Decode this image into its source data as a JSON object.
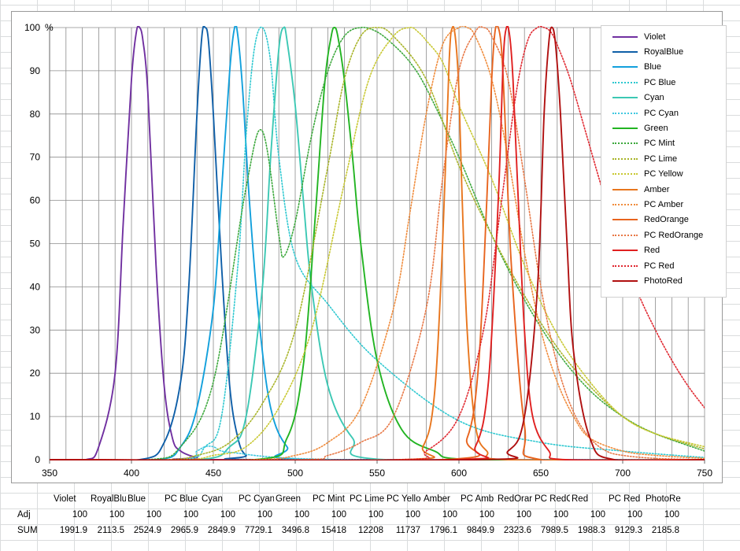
{
  "chart_data": {
    "type": "line",
    "title": "",
    "xlabel": "",
    "ylabel": "",
    "y_unit_label": "%",
    "xlim": [
      350,
      750
    ],
    "ylim": [
      0,
      100
    ],
    "x_ticks": [
      350,
      400,
      450,
      500,
      550,
      600,
      650,
      700,
      750
    ],
    "y_ticks": [
      0,
      10,
      20,
      30,
      40,
      50,
      60,
      70,
      80,
      90,
      100
    ],
    "grid": "vertical every 10 nm, horizontal every 10 %",
    "legend_position": "top-right",
    "series": [
      {
        "name": "Violet",
        "color": "#7030a0",
        "style": "solid",
        "x": [
          372,
          380,
          390,
          395,
          400,
          403,
          405,
          407,
          410,
          415,
          420,
          425,
          430,
          440,
          450
        ],
        "y": [
          0,
          3,
          20,
          55,
          88,
          99,
          100,
          97,
          85,
          45,
          17,
          5,
          2,
          0.5,
          0
        ]
      },
      {
        "name": "RoyalBlue",
        "color": "#0f5fa8",
        "style": "solid",
        "x": [
          405,
          420,
          430,
          435,
          440,
          443,
          445,
          447,
          450,
          455,
          460,
          465,
          470,
          480
        ],
        "y": [
          0,
          4,
          18,
          40,
          80,
          98,
          100,
          97,
          80,
          45,
          17,
          5,
          1,
          0
        ]
      },
      {
        "name": "Blue",
        "color": "#12a0dc",
        "style": "solid",
        "x": [
          415,
          430,
          440,
          450,
          455,
          460,
          463,
          465,
          468,
          472,
          478,
          485,
          495,
          510
        ],
        "y": [
          0,
          3,
          12,
          35,
          62,
          90,
          100,
          98,
          85,
          60,
          32,
          12,
          3,
          0
        ]
      },
      {
        "name": "PC Blue",
        "color": "#2ec8d0",
        "style": "dotted",
        "x": [
          430,
          445,
          455,
          465,
          470,
          475,
          480,
          485,
          490,
          500,
          520,
          550,
          600,
          650,
          700,
          750
        ],
        "y": [
          0,
          3,
          10,
          45,
          75,
          95,
          100,
          92,
          70,
          47,
          36,
          23,
          9,
          4,
          2,
          0.5
        ]
      },
      {
        "name": "Cyan",
        "color": "#3cc8b4",
        "style": "solid",
        "x": [
          440,
          460,
          470,
          480,
          485,
          490,
          493,
          495,
          500,
          505,
          510,
          520,
          535,
          555
        ],
        "y": [
          0,
          3,
          10,
          40,
          70,
          95,
          100,
          97,
          82,
          60,
          40,
          17,
          5,
          0
        ]
      },
      {
        "name": "PC Cyan",
        "color": "#40c8e0",
        "style": "dotted",
        "x": [
          430,
          440,
          445,
          450,
          455,
          465,
          480,
          500,
          520,
          545
        ],
        "y": [
          0,
          2,
          3,
          3,
          2,
          1.5,
          0.8,
          0.3,
          0.1,
          0
        ]
      },
      {
        "name": "Green",
        "color": "#22b422",
        "style": "solid",
        "x": [
          475,
          495,
          505,
          512,
          518,
          522,
          524,
          526,
          530,
          535,
          540,
          550,
          565,
          585,
          610
        ],
        "y": [
          0,
          5,
          22,
          55,
          87,
          98,
          100,
          98,
          88,
          70,
          50,
          23,
          7,
          2,
          0
        ]
      },
      {
        "name": "PC Mint",
        "color": "#3ca83c",
        "style": "dotted",
        "x": [
          410,
          430,
          450,
          470,
          480,
          490,
          493,
          500,
          510,
          520,
          530,
          540,
          550,
          560,
          570,
          580,
          600,
          620,
          640,
          660,
          680,
          700,
          720,
          750
        ],
        "y": [
          0,
          3,
          18,
          63,
          76,
          52,
          47,
          55,
          75,
          90,
          98,
          100,
          99,
          96,
          92,
          86,
          70,
          52,
          37,
          25,
          16,
          10,
          6,
          2
        ]
      },
      {
        "name": "PC Lime",
        "color": "#a8b428",
        "style": "dotted",
        "x": [
          420,
          440,
          460,
          480,
          500,
          520,
          530,
          540,
          550,
          560,
          580,
          600,
          620,
          640,
          660,
          680,
          700,
          720,
          750
        ],
        "y": [
          0,
          1,
          4,
          13,
          30,
          68,
          88,
          98,
          100,
          98,
          88,
          68,
          52,
          38,
          26,
          17,
          10,
          6,
          2.5
        ]
      },
      {
        "name": "PC Yellow",
        "color": "#c8c832",
        "style": "dotted",
        "x": [
          430,
          450,
          470,
          490,
          510,
          530,
          545,
          560,
          570,
          575,
          580,
          590,
          600,
          620,
          640,
          660,
          680,
          700,
          720,
          750
        ],
        "y": [
          0,
          1,
          3,
          12,
          30,
          64,
          88,
          98,
          100,
          99,
          97,
          92,
          82,
          65,
          45,
          29,
          18,
          10,
          6,
          3
        ]
      },
      {
        "name": "Amber",
        "color": "#e8761e",
        "style": "solid",
        "x": [
          565,
          578,
          585,
          590,
          594,
          596,
          598,
          600,
          602,
          605,
          610,
          617,
          630
        ],
        "y": [
          0,
          3,
          15,
          50,
          92,
          100,
          97,
          85,
          60,
          30,
          8,
          2,
          0
        ]
      },
      {
        "name": "PC Amber",
        "color": "#f08c3c",
        "style": "dotted",
        "x": [
          470,
          500,
          520,
          540,
          560,
          570,
          580,
          590,
          600,
          605,
          610,
          620,
          630,
          640,
          650,
          660,
          670,
          680,
          700,
          720,
          750
        ],
        "y": [
          0,
          1,
          4,
          12,
          35,
          57,
          80,
          96,
          100,
          100,
          98,
          88,
          70,
          48,
          30,
          18,
          10,
          5,
          2,
          1,
          0.3
        ]
      },
      {
        "name": "RedOrange",
        "color": "#e8641e",
        "style": "solid",
        "x": [
          590,
          605,
          612,
          617,
          620,
          622,
          624,
          626,
          628,
          632,
          640,
          650
        ],
        "y": [
          0,
          5,
          22,
          60,
          88,
          99,
          100,
          95,
          80,
          45,
          8,
          0
        ]
      },
      {
        "name": "PC RedOrange",
        "color": "#e87846",
        "style": "dotted",
        "x": [
          500,
          520,
          540,
          560,
          580,
          590,
          600,
          610,
          615,
          620,
          630,
          640,
          650,
          660,
          670,
          680,
          690,
          700,
          720,
          750
        ],
        "y": [
          0,
          1,
          4,
          10,
          35,
          65,
          90,
          99,
          100,
          98,
          88,
          65,
          40,
          22,
          11,
          5,
          2,
          1,
          0.3,
          0
        ]
      },
      {
        "name": "Red",
        "color": "#e02020",
        "style": "solid",
        "x": [
          595,
          610,
          618,
          624,
          627,
          629,
          631,
          633,
          636,
          640,
          645,
          655,
          665
        ],
        "y": [
          0,
          3,
          18,
          60,
          92,
          100,
          98,
          88,
          62,
          30,
          10,
          2,
          0
        ]
      },
      {
        "name": "PC Red",
        "color": "#e02830",
        "style": "dotted",
        "x": [
          560,
          580,
          600,
          615,
          625,
          635,
          642,
          648,
          652,
          656,
          660,
          668,
          678,
          688,
          700,
          710,
          720,
          730,
          740,
          750
        ],
        "y": [
          0,
          2,
          10,
          30,
          57,
          85,
          97,
          100,
          100,
          99,
          96,
          88,
          75,
          62,
          48,
          38,
          30,
          23,
          17,
          12
        ]
      },
      {
        "name": "PhotoRed",
        "color": "#b01010",
        "style": "solid",
        "x": [
          610,
          630,
          640,
          648,
          652,
          655,
          657,
          659,
          662,
          666,
          670,
          680,
          695
        ],
        "y": [
          0,
          2,
          10,
          40,
          80,
          97,
          100,
          96,
          80,
          50,
          25,
          5,
          0
        ]
      }
    ]
  },
  "table": {
    "row_labels": [
      "Adj",
      "SUM"
    ],
    "columns": [
      {
        "name": "Violet",
        "adj": "100",
        "sum": "1991.9"
      },
      {
        "name": "RoyalBlu",
        "adj": "100",
        "sum": "2113.5"
      },
      {
        "name": "Blue",
        "adj": "100",
        "sum": "2524.9"
      },
      {
        "name": "PC Blue",
        "adj": "100",
        "sum": "2965.9"
      },
      {
        "name": "Cyan",
        "adj": "100",
        "sum": "2849.9"
      },
      {
        "name": "PC Cyan",
        "adj": "100",
        "sum": "7729.1"
      },
      {
        "name": "Green",
        "adj": "100",
        "sum": "3496.8"
      },
      {
        "name": "PC Mint",
        "adj": "100",
        "sum": "15418"
      },
      {
        "name": "PC Lime",
        "adj": "100",
        "sum": "12208"
      },
      {
        "name": "PC Yello",
        "adj": "100",
        "sum": "11737"
      },
      {
        "name": "Amber",
        "adj": "100",
        "sum": "1796.1"
      },
      {
        "name": "PC Amb",
        "adj": "100",
        "sum": "9849.9"
      },
      {
        "name": "RedOrar",
        "adj": "100",
        "sum": "2323.6"
      },
      {
        "name": "PC RedC",
        "adj": "100",
        "sum": "7989.5"
      },
      {
        "name": "Red",
        "adj": "100",
        "sum": "1988.3"
      },
      {
        "name": "PC Red",
        "adj": "100",
        "sum": "9129.3"
      },
      {
        "name": "PhotoRed",
        "adj": "100",
        "sum": "2185.8"
      }
    ]
  }
}
